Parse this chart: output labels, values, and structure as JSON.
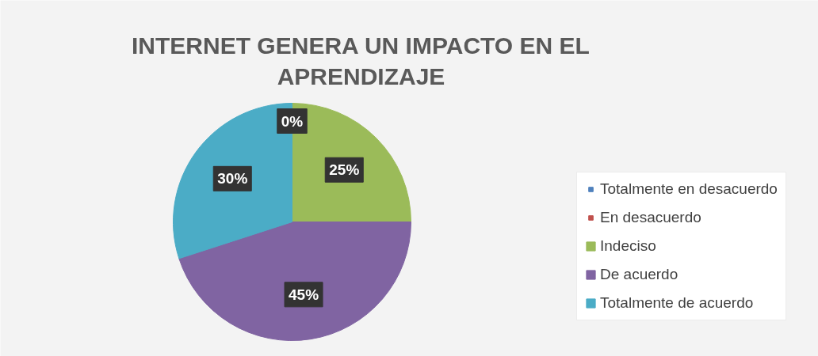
{
  "chart_data": {
    "type": "pie",
    "title": "INTERNET GENERA UN IMPACTO EN EL APRENDIZAJE",
    "categories": [
      "Totalmente en desacuerdo",
      "En desacuerdo",
      "Indeciso",
      "De acuerdo",
      "Totalmente de acuerdo"
    ],
    "values": [
      0,
      0,
      25,
      45,
      30
    ],
    "colors": [
      "#4f81bd",
      "#c0504d",
      "#9bbb59",
      "#8064a2",
      "#4bacc6"
    ],
    "value_labels": [
      "0%",
      null,
      "25%",
      "45%",
      "30%"
    ],
    "legend": "right"
  }
}
